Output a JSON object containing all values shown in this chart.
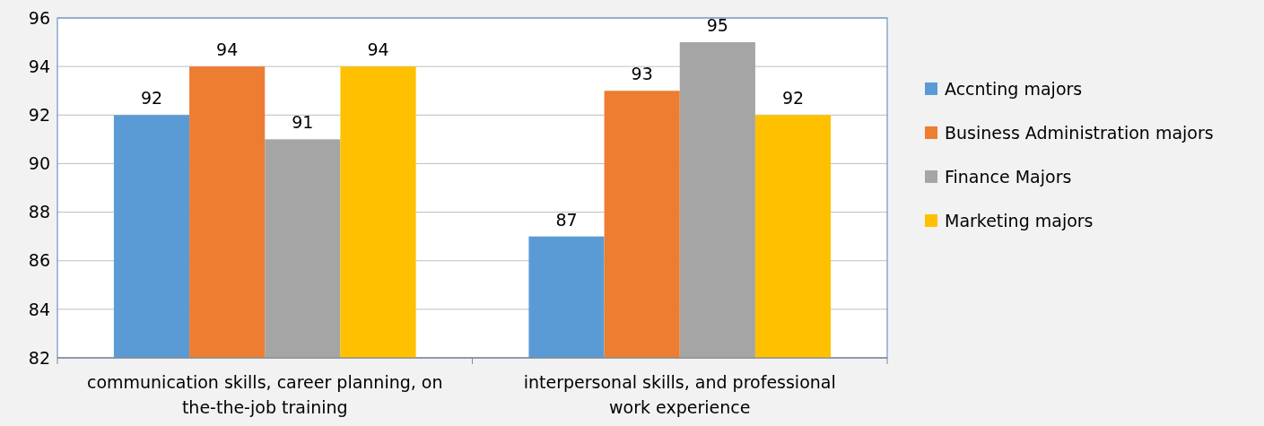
{
  "chart_data": {
    "type": "bar",
    "categories": [
      "communication skills, career planning, on the-the-job training",
      "interpersonal skills, and professional work experience"
    ],
    "series": [
      {
        "name": "Accnting majors",
        "color": "#5b9bd5",
        "values": [
          92,
          87
        ]
      },
      {
        "name": "Business Administration majors",
        "color": "#ed7d31",
        "values": [
          94,
          93
        ]
      },
      {
        "name": "Finance Majors",
        "color": "#a5a5a5",
        "values": [
          91,
          95
        ]
      },
      {
        "name": "Marketing majors",
        "color": "#ffc000",
        "values": [
          94,
          92
        ]
      }
    ],
    "ylim": [
      82,
      96
    ],
    "yticks": [
      82,
      84,
      86,
      88,
      90,
      92,
      94,
      96
    ],
    "grid": "y",
    "legend": "right",
    "data_labels": true
  }
}
